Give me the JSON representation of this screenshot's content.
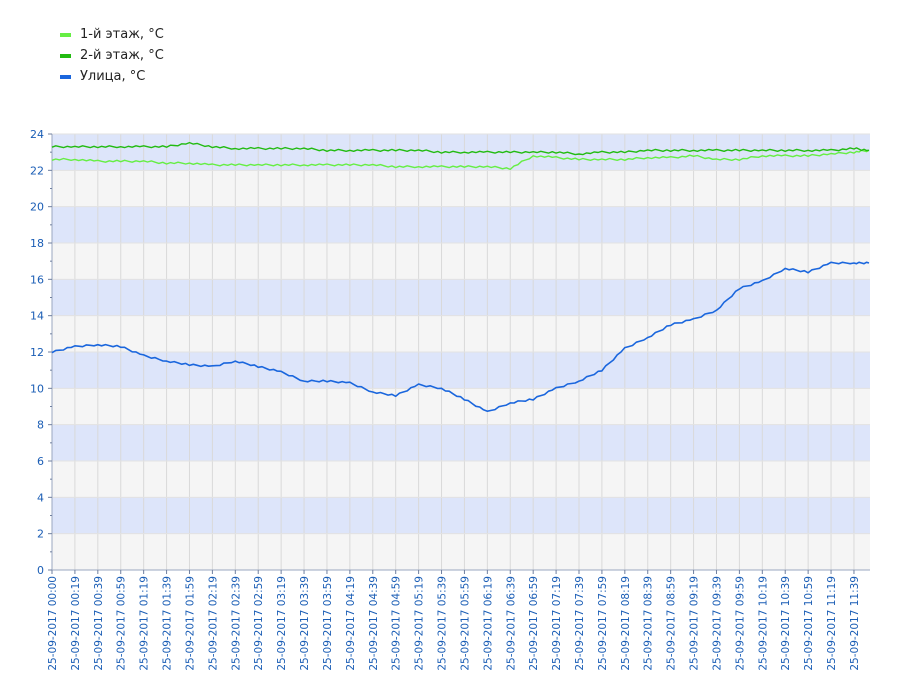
{
  "chart_data": {
    "type": "line",
    "title": "",
    "xlabel": "",
    "ylabel": "",
    "ylim": [
      0,
      24
    ],
    "y_ticks": [
      0,
      2,
      4,
      6,
      8,
      10,
      12,
      14,
      16,
      18,
      20,
      22,
      24
    ],
    "legend_position": "top-left",
    "grid": true,
    "x_ticks": [
      "25-09-2017 00:00",
      "25-09-2017 00:19",
      "25-09-2017 00:39",
      "25-09-2017 00:59",
      "25-09-2017 01:19",
      "25-09-2017 01:39",
      "25-09-2017 01:59",
      "25-09-2017 02:19",
      "25-09-2017 02:39",
      "25-09-2017 02:59",
      "25-09-2017 03:19",
      "25-09-2017 03:39",
      "25-09-2017 03:59",
      "25-09-2017 04:19",
      "25-09-2017 04:39",
      "25-09-2017 04:59",
      "25-09-2017 05:19",
      "25-09-2017 05:39",
      "25-09-2017 05:59",
      "25-09-2017 06:19",
      "25-09-2017 06:39",
      "25-09-2017 06:59",
      "25-09-2017 07:19",
      "25-09-2017 07:39",
      "25-09-2017 07:59",
      "25-09-2017 08:19",
      "25-09-2017 08:39",
      "25-09-2017 08:59",
      "25-09-2017 09:19",
      "25-09-2017 09:39",
      "25-09-2017 09:59",
      "25-09-2017 10:19",
      "25-09-2017 10:39",
      "25-09-2017 10:59",
      "25-09-2017 11:19",
      "25-09-2017 11:39"
    ],
    "x": [
      "00:00",
      "00:19",
      "00:39",
      "00:59",
      "01:19",
      "01:39",
      "01:59",
      "02:19",
      "02:39",
      "02:59",
      "03:19",
      "03:39",
      "03:59",
      "04:19",
      "04:39",
      "04:59",
      "05:19",
      "05:39",
      "05:59",
      "06:19",
      "06:39",
      "06:59",
      "07:19",
      "07:39",
      "07:59",
      "08:19",
      "08:39",
      "08:59",
      "09:19",
      "09:39",
      "09:59",
      "10:19",
      "10:39",
      "10:59",
      "11:19",
      "11:39",
      "11:53"
    ],
    "series": [
      {
        "name": "1-й этаж, °C",
        "color": "#66ee44",
        "values": [
          22.6,
          22.6,
          22.5,
          22.5,
          22.5,
          22.4,
          22.4,
          22.3,
          22.3,
          22.3,
          22.3,
          22.3,
          22.3,
          22.3,
          22.3,
          22.2,
          22.2,
          22.2,
          22.2,
          22.2,
          22.1,
          22.8,
          22.7,
          22.6,
          22.6,
          22.6,
          22.7,
          22.7,
          22.8,
          22.6,
          22.6,
          22.8,
          22.8,
          22.8,
          22.9,
          23.0,
          23.1
        ]
      },
      {
        "name": "2-й этаж, °C",
        "color": "#22bb11",
        "values": [
          23.3,
          23.3,
          23.3,
          23.3,
          23.3,
          23.3,
          23.5,
          23.3,
          23.2,
          23.2,
          23.2,
          23.2,
          23.1,
          23.1,
          23.1,
          23.1,
          23.1,
          23.0,
          23.0,
          23.0,
          23.0,
          23.0,
          23.0,
          22.9,
          23.0,
          23.0,
          23.1,
          23.1,
          23.1,
          23.1,
          23.1,
          23.1,
          23.1,
          23.1,
          23.1,
          23.2,
          23.1
        ]
      },
      {
        "name": "Улица, °C",
        "color": "#1a66dd",
        "values": [
          12.0,
          12.3,
          12.4,
          12.3,
          11.8,
          11.5,
          11.3,
          11.2,
          11.5,
          11.2,
          10.9,
          10.4,
          10.4,
          10.3,
          9.8,
          9.6,
          10.2,
          10.0,
          9.4,
          8.7,
          9.2,
          9.4,
          10.0,
          10.4,
          11.0,
          12.2,
          12.8,
          13.5,
          13.8,
          14.3,
          15.5,
          15.9,
          16.6,
          16.4,
          16.9,
          16.9,
          16.9
        ]
      }
    ]
  }
}
